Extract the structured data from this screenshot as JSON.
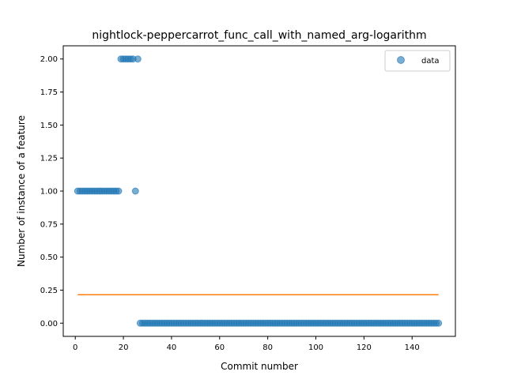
{
  "chart_data": {
    "type": "scatter",
    "title": "nightlock-peppercarrot_func_call_with_named_arg-logarithm",
    "xlabel": "Commit number",
    "ylabel": "Number of instance of a feature",
    "xlim": [
      -5,
      158
    ],
    "ylim": [
      -0.1,
      2.1
    ],
    "xticks": [
      0,
      20,
      40,
      60,
      80,
      100,
      120,
      140
    ],
    "yticks": [
      0.0,
      0.25,
      0.5,
      0.75,
      1.0,
      1.25,
      1.5,
      1.75,
      2.0
    ],
    "ytick_labels": [
      "0.00",
      "0.25",
      "0.50",
      "0.75",
      "1.00",
      "1.25",
      "1.50",
      "1.75",
      "2.00"
    ],
    "legend": {
      "position": "top-right",
      "entries": [
        "data"
      ]
    },
    "series": [
      {
        "name": "data",
        "kind": "scatter",
        "color": "#1f77b4",
        "segments": [
          {
            "x_start": 1,
            "x_end": 18,
            "y": 1
          },
          {
            "x_start": 19,
            "x_end": 24,
            "y": 2
          },
          {
            "x_start": 25,
            "x_end": 25,
            "y": 1
          },
          {
            "x_start": 26,
            "x_end": 26,
            "y": 2
          },
          {
            "x_start": 27,
            "x_end": 151,
            "y": 0
          }
        ]
      },
      {
        "kind": "line",
        "color": "#ff7f0e",
        "x": [
          1,
          151
        ],
        "y": [
          0.215,
          0.215
        ]
      }
    ]
  }
}
